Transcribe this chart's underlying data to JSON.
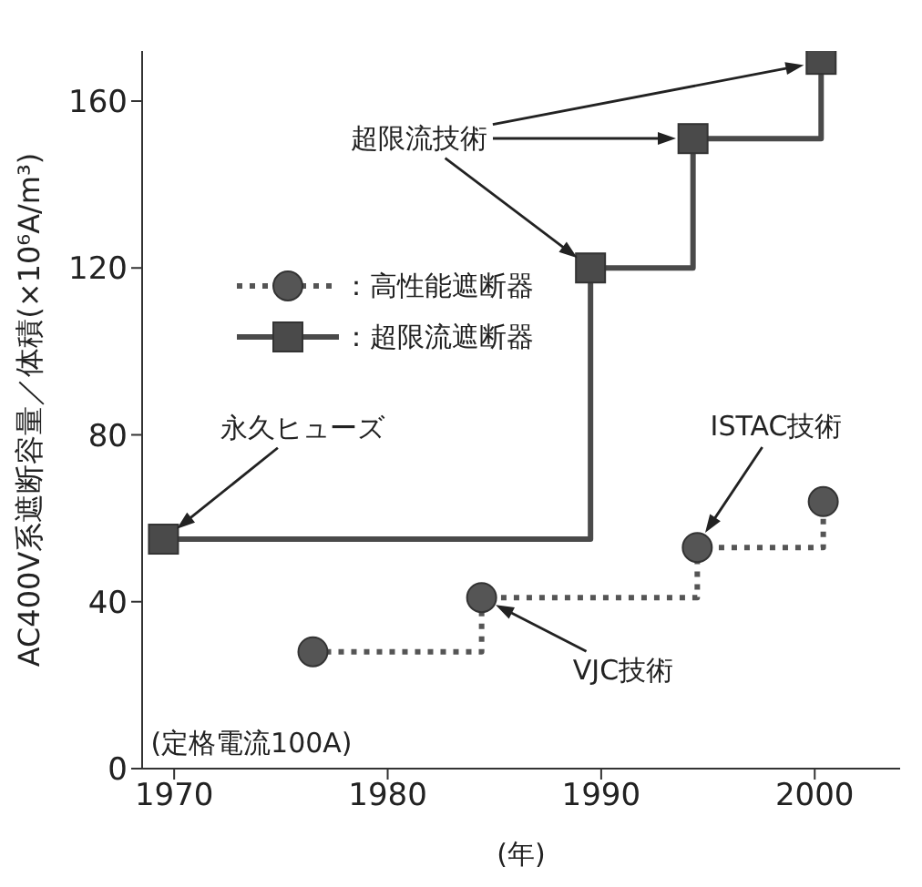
{
  "chart_data": {
    "type": "step",
    "xlabel": "(年)",
    "ylabel": "AC400V系遮断容量／体積(×10⁶A/m³)",
    "xlim": [
      1968.5,
      2004
    ],
    "xticks": [
      1970,
      1980,
      1990,
      2000
    ],
    "ylim": [
      0,
      172
    ],
    "yticks": [
      0,
      40,
      80,
      120,
      160
    ],
    "grid": false,
    "legend": "top left",
    "series": [
      {
        "name": "：高性能遮断器",
        "color": "#555555",
        "marker": "circle",
        "line_style": "dotted",
        "x": [
          1976.5,
          1984.4,
          1994.5,
          2000.4
        ],
        "values": [
          28,
          41,
          53,
          64
        ]
      },
      {
        "name": "：超限流遮断器",
        "color": "#4a4a4a",
        "marker": "square",
        "line_style": "solid",
        "x": [
          1969.5,
          1989.5,
          1994.3,
          2000.3
        ],
        "values": [
          55,
          120,
          151,
          170
        ]
      }
    ],
    "annotations": [
      "永久ヒューズ",
      "超限流技術",
      "ISTAC技術",
      "VJC技術",
      "(定格電流100A)"
    ]
  }
}
